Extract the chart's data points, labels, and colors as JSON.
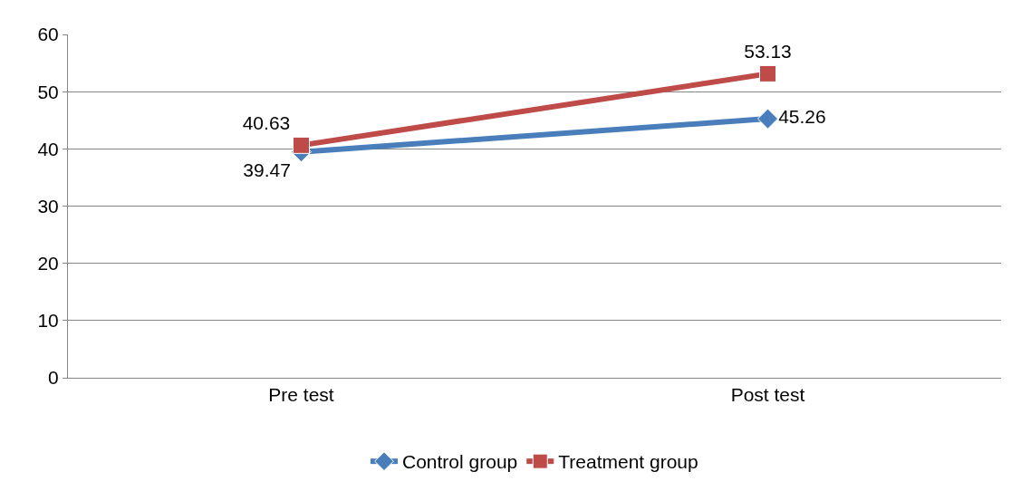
{
  "chart_data": {
    "type": "line",
    "categories": [
      "Pre test",
      "Post test"
    ],
    "series": [
      {
        "name": "Control group",
        "color": "#4a7ebb",
        "values": [
          39.47,
          45.26
        ],
        "marker": "diamond"
      },
      {
        "name": "Treatment group",
        "color": "#be4b48",
        "values": [
          40.63,
          53.13
        ],
        "marker": "square"
      }
    ],
    "ylim": [
      0,
      60
    ],
    "yticks": [
      0,
      10,
      20,
      30,
      40,
      50,
      60
    ],
    "grid": "y",
    "legend": "bottom",
    "data_labels": true,
    "line_style": "solid"
  }
}
